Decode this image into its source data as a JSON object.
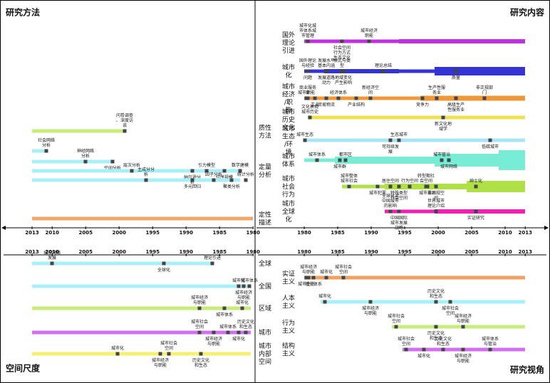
{
  "quadrants": [
    {
      "title": "研究方法",
      "ticks": [
        2013,
        2010,
        2005,
        2000,
        1995,
        1990,
        1985,
        1980
      ],
      "groups": [
        {
          "label": "质性方法",
          "lanes": [
            [
              "问卷调查、深度访谈"
            ]
          ]
        },
        {
          "label": "定量分析",
          "lanes": [
            [
              "社会网络分析"
            ],
            [
              "神经网络分析",
              "空间分析"
            ],
            [
              "层次分析",
              "纳尔逊分析",
              "引力模型",
              "位序规模",
              "数学建模"
            ],
            [
              "主成分分析",
              "多元回归",
              "因子分析",
              "聚类分析",
              "统计分析"
            ]
          ]
        },
        {
          "label": "定性描述",
          "lanes": [
            []
          ]
        }
      ]
    },
    {
      "title": "研究内容",
      "ticks": [
        1980,
        1985,
        1990,
        1995,
        2000,
        2005,
        2010,
        2013
      ],
      "groups": [
        {
          "label": "国外理论引进",
          "lanes": [
            [
              "城市化城市体系城市管理",
              "社会空间行为方式生态文化",
              "城市经济职能"
            ]
          ]
        },
        {
          "label": "城市化",
          "lanes": [
            [
              "国外理论与经验",
              "问题",
              "发展水平基本内涵",
              "发展道路动力",
              "模式与类型",
              "地域变化产生影响",
              "理论总结",
              "质量"
            ]
          ]
        },
        {
          "label": "城市经济/职能",
          "lanes": [
            [
              "城市职能",
              "工业",
              "商业服务业",
              "贸易物流",
              "经济体系",
              "产业结构",
              "新经济空间",
              "竞争力",
              "生产性服务业",
              "高级生产性服务业",
              "非正规部门"
            ]
          ]
        },
        {
          "label": "城市历史文化",
          "lanes": [
            [
              "文化景观城市历史",
              "新文化地域学"
            ]
          ]
        },
        {
          "label": "城市生态/环境",
          "lanes": [
            [
              "城市生态",
              "可持续发展",
              "生态城市",
              "低碳城市"
            ]
          ]
        },
        {
          "label": "城市体系",
          "lanes": [
            [
              "城市体系",
              "城市群",
              "都市区",
              "城市网络",
              "城市管治"
            ]
          ]
        },
        {
          "label": "城市社会行为",
          "lanes": [
            [
              "城市整体城市社会",
              "城市犯罪",
              "居住空间",
              "特殊类型社会空间",
              "行为空间",
              "城市贫困",
              "转型期社会空间",
              "非正规空间",
              "绅士化"
            ]
          ]
        },
        {
          "label": "城市全球化",
          "lanes": [
            [
              "全球化对中国城市的影响",
              "中国国际城市发展战略",
              "世界城市理论介绍",
              "实证研究"
            ]
          ]
        }
      ]
    },
    {
      "title": "空间尺度",
      "ticks": [
        2013,
        2010,
        2005,
        2000,
        1995,
        1990,
        1985,
        1980
      ],
      "groups": [
        {
          "label": "全球",
          "lanes": [
            [
              "城市网络发展",
              "全球化",
              "理论引进"
            ]
          ]
        },
        {
          "label": "全国",
          "lanes": [
            [
              "城市化",
              "城市经济与职能",
              "城市体系"
            ]
          ]
        },
        {
          "label": "区域",
          "lanes": [
            [
              "城市经济与职能",
              "城市体系",
              "城市化"
            ]
          ]
        },
        {
          "label": "城市",
          "lanes": [
            [
              "城市社会空间",
              "城市经济与职能",
              "城市体系",
              "城市化",
              "历史文化和生态"
            ]
          ]
        },
        {
          "label": "城市内部空间",
          "lanes": [
            [
              "城市化",
              "城市经济与职能",
              "城市社会空间",
              "历史文化和生态"
            ]
          ]
        }
      ]
    },
    {
      "title": "研究视角",
      "ticks": [
        1980,
        1985,
        1990,
        1995,
        2000,
        2005,
        2010,
        2013
      ],
      "groups": [
        {
          "label": "实证主义",
          "lanes": [
            [
              "城市经济与职能",
              "城市体系",
              "城市化",
              "城市生态",
              "城市社会空间"
            ]
          ]
        },
        {
          "label": "人本主义",
          "lanes": [
            [
              "城市化",
              "城市经济与职能",
              "历史文化和生态",
              "城市社会空间"
            ]
          ]
        },
        {
          "label": "行为主义",
          "lanes": [
            [
              "城市社会空间",
              "历史文化和生态",
              "城市经济与职能"
            ]
          ]
        },
        {
          "label": "结构主义",
          "lanes": [
            [
              "城市社会空间",
              "城市化",
              "历史文化和生态",
              "城市经济与职能",
              "城市体系与管治"
            ]
          ]
        }
      ]
    }
  ]
}
